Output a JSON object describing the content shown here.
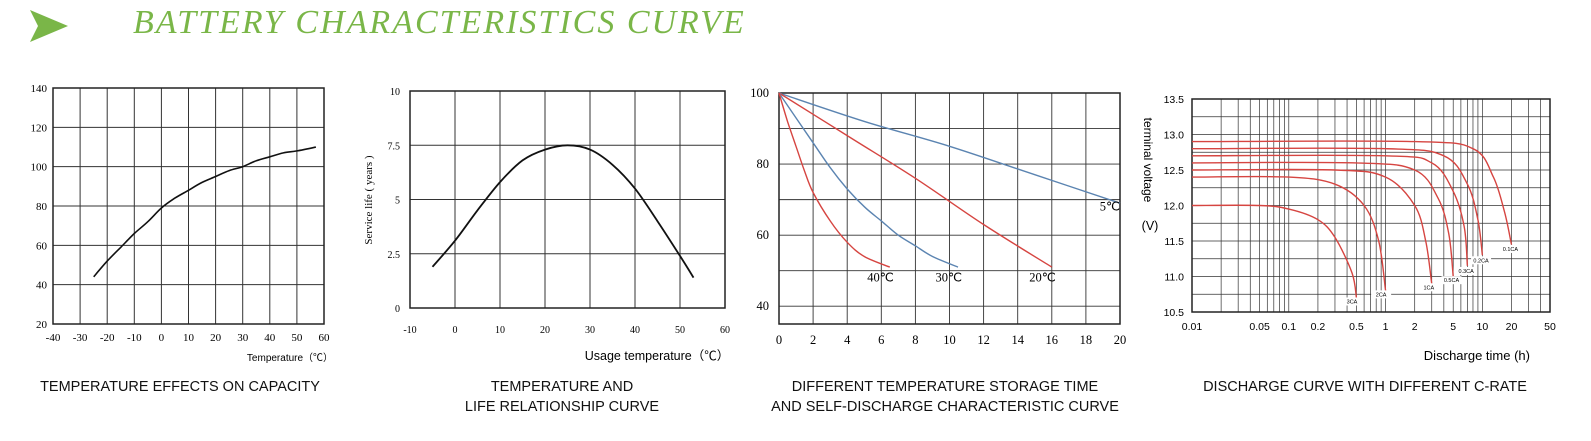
{
  "header": {
    "title": "BATTERY  CHARACTERISTICS CURVE",
    "accent_color": "#7ab648",
    "icon": "arrow-right-icon"
  },
  "chart_data": [
    {
      "id": "capacity",
      "type": "line",
      "caption": "TEMPERATURE EFFECTS ON CAPACITY",
      "xlabel": "Temperature（℃）",
      "ylabel": "",
      "xlim": [
        -40,
        60
      ],
      "ylim": [
        20,
        140
      ],
      "xticks": [
        -40,
        -30,
        -20,
        -10,
        0,
        10,
        20,
        30,
        40,
        50,
        60
      ],
      "yticks": [
        20,
        40,
        60,
        80,
        100,
        120,
        140
      ],
      "grid": true,
      "series": [
        {
          "color": "#111111",
          "x": [
            -25,
            -20,
            -15,
            -10,
            -5,
            0,
            5,
            10,
            15,
            20,
            25,
            30,
            35,
            40,
            45,
            50,
            57
          ],
          "y": [
            44,
            52,
            59,
            66,
            72,
            79,
            84,
            88,
            92,
            95,
            98,
            100,
            103,
            105,
            107,
            108,
            110
          ]
        }
      ]
    },
    {
      "id": "life",
      "type": "line",
      "caption": [
        "TEMPERATURE AND",
        "LIFE RELATIONSHIP CURVE"
      ],
      "xlabel": "Usage temperature（℃）",
      "ylabel": "Service life ( years )",
      "xlim": [
        -10,
        60
      ],
      "ylim": [
        0,
        10
      ],
      "xticks": [
        -10,
        0,
        10,
        20,
        30,
        40,
        50,
        60
      ],
      "yticks": [
        0,
        2.5,
        5,
        7.5,
        10
      ],
      "ytick_labels": [
        "0",
        "2.5",
        "5",
        "7.5",
        "10"
      ],
      "grid": true,
      "series": [
        {
          "color": "#111111",
          "x": [
            -5,
            0,
            5,
            10,
            15,
            20,
            25,
            30,
            35,
            40,
            45,
            50,
            53
          ],
          "y": [
            1.9,
            3.1,
            4.5,
            5.8,
            6.8,
            7.3,
            7.5,
            7.3,
            6.6,
            5.5,
            4.0,
            2.4,
            1.4
          ]
        }
      ]
    },
    {
      "id": "storage",
      "type": "line",
      "caption": [
        "DIFFERENT TEMPERATURE STORAGE TIME",
        "AND SELF-DISCHARGE CHARACTERISTIC CURVE"
      ],
      "xlabel": "",
      "ylabel": "",
      "xlim": [
        0,
        20
      ],
      "ylim": [
        35,
        100
      ],
      "xticks": [
        0,
        2,
        4,
        6,
        8,
        10,
        12,
        14,
        16,
        18,
        20
      ],
      "yticks": [
        40,
        60,
        80,
        100
      ],
      "ytick_labels": [
        "40",
        "60",
        "80",
        "100"
      ],
      "grid": true,
      "series": [
        {
          "name": "5℃",
          "color": "#5b84b1",
          "x": [
            0,
            5,
            10,
            15,
            20
          ],
          "y": [
            100,
            92,
            85,
            77,
            69
          ]
        },
        {
          "name": "20℃",
          "color": "#d64541",
          "x": [
            0,
            4,
            8,
            12,
            16
          ],
          "y": [
            100,
            88,
            76,
            63,
            51
          ]
        },
        {
          "name": "30℃",
          "color": "#5b84b1",
          "x": [
            0,
            1,
            2,
            3,
            4,
            5,
            6,
            7,
            8,
            9,
            10.5
          ],
          "y": [
            100,
            93,
            86,
            79,
            73,
            68,
            64,
            60,
            57,
            54,
            51
          ]
        },
        {
          "name": "40℃",
          "color": "#d64541",
          "x": [
            0,
            0.5,
            1,
            1.5,
            2,
            3,
            4,
            5,
            6.5
          ],
          "y": [
            100,
            92,
            85,
            78,
            72,
            64,
            58,
            54,
            51
          ]
        }
      ],
      "annotations": [
        "5℃",
        "20℃",
        "30℃",
        "40℃"
      ]
    },
    {
      "id": "discharge",
      "type": "line",
      "caption": "DISCHARGE CURVE WITH DIFFERENT C-RATE",
      "xlabel": "Discharge time (h)",
      "ylabel": "terminal voltage (V)",
      "ylabel_unit": "(V)",
      "xscale": "log",
      "xlim": [
        0.01,
        50
      ],
      "ylim": [
        10.5,
        13.5
      ],
      "xticks": [
        0.01,
        0.05,
        0.1,
        0.2,
        0.5,
        1,
        2,
        5,
        10,
        20,
        50
      ],
      "xtick_labels": [
        "0.01",
        "0.05",
        "0.1",
        "0.2",
        "0.5",
        "1",
        "2",
        "5",
        "10",
        "20",
        "50"
      ],
      "yticks": [
        10.5,
        11.0,
        11.5,
        12.0,
        12.5,
        13.0,
        13.5
      ],
      "ytick_labels": [
        "10.5",
        "11.0",
        "11.5",
        "12.0",
        "12.5",
        "13.0",
        "13.5"
      ],
      "grid": true,
      "series": [
        {
          "name": "3CA",
          "color": "#d64541",
          "x": [
            0.01,
            0.05,
            0.1,
            0.2,
            0.3,
            0.45,
            0.5
          ],
          "y": [
            12.0,
            12.0,
            11.95,
            11.8,
            11.55,
            11.05,
            10.7
          ]
        },
        {
          "name": "2CA",
          "color": "#d64541",
          "x": [
            0.01,
            0.1,
            0.3,
            0.6,
            0.85,
            1.0
          ],
          "y": [
            12.4,
            12.4,
            12.3,
            12.0,
            11.5,
            10.8
          ]
        },
        {
          "name": "1CA",
          "color": "#d64541",
          "x": [
            0.01,
            0.3,
            1.0,
            2.0,
            2.6,
            3.0
          ],
          "y": [
            12.5,
            12.5,
            12.4,
            12.0,
            11.5,
            10.9
          ]
        },
        {
          "name": "0.5CA",
          "color": "#d64541",
          "x": [
            0.01,
            0.5,
            2.0,
            3.5,
            4.5,
            5.0
          ],
          "y": [
            12.6,
            12.6,
            12.5,
            12.1,
            11.6,
            11.0
          ]
        },
        {
          "name": "0.3CA",
          "color": "#d64541",
          "x": [
            0.01,
            1.0,
            3.0,
            5.0,
            6.5,
            7.0
          ],
          "y": [
            12.7,
            12.7,
            12.6,
            12.2,
            11.7,
            11.15
          ]
        },
        {
          "name": "0.2CA",
          "color": "#d64541",
          "x": [
            0.01,
            1.0,
            4.0,
            7.0,
            9.0,
            10.0
          ],
          "y": [
            12.8,
            12.8,
            12.7,
            12.3,
            11.8,
            11.3
          ]
        },
        {
          "name": "0.1CA",
          "color": "#d64541",
          "x": [
            0.01,
            2.0,
            8.0,
            13.0,
            17.0,
            20.0
          ],
          "y": [
            12.9,
            12.9,
            12.8,
            12.4,
            11.9,
            11.45
          ]
        }
      ],
      "annotations": [
        "3CA",
        "2CA",
        "1CA",
        "0.5CA",
        "0.3CA",
        "0.2CA",
        "0.1CA"
      ]
    }
  ]
}
